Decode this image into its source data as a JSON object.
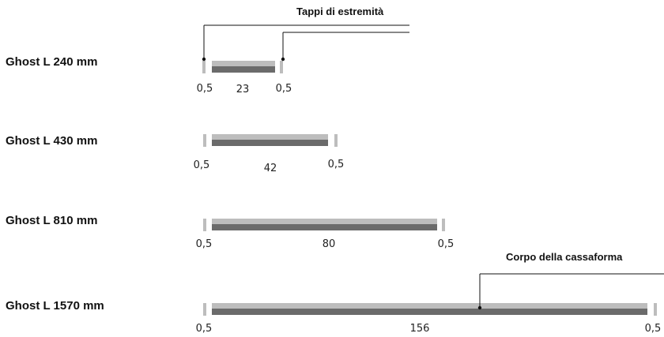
{
  "callouts": {
    "end_caps": "Tappi di estremità",
    "body": "Corpo della cassaforma"
  },
  "colors": {
    "cap_light": "#bdbdbd",
    "body_light": "#bdbdbd",
    "body_dark": "#6b6b6b",
    "leader": "#111111"
  },
  "rows": [
    {
      "title": "Ghost L 240 mm",
      "dims": {
        "left": "0,5",
        "middle": "23",
        "right": "0,5"
      }
    },
    {
      "title": "Ghost L 430 mm",
      "dims": {
        "left": "0,5",
        "middle": "42",
        "right": "0,5"
      }
    },
    {
      "title": "Ghost L 810 mm",
      "dims": {
        "left": "0,5",
        "middle": "80",
        "right": "0,5"
      }
    },
    {
      "title": "Ghost L 1570 mm",
      "dims": {
        "left": "0,5",
        "middle": "156",
        "right": "0,5"
      }
    }
  ]
}
